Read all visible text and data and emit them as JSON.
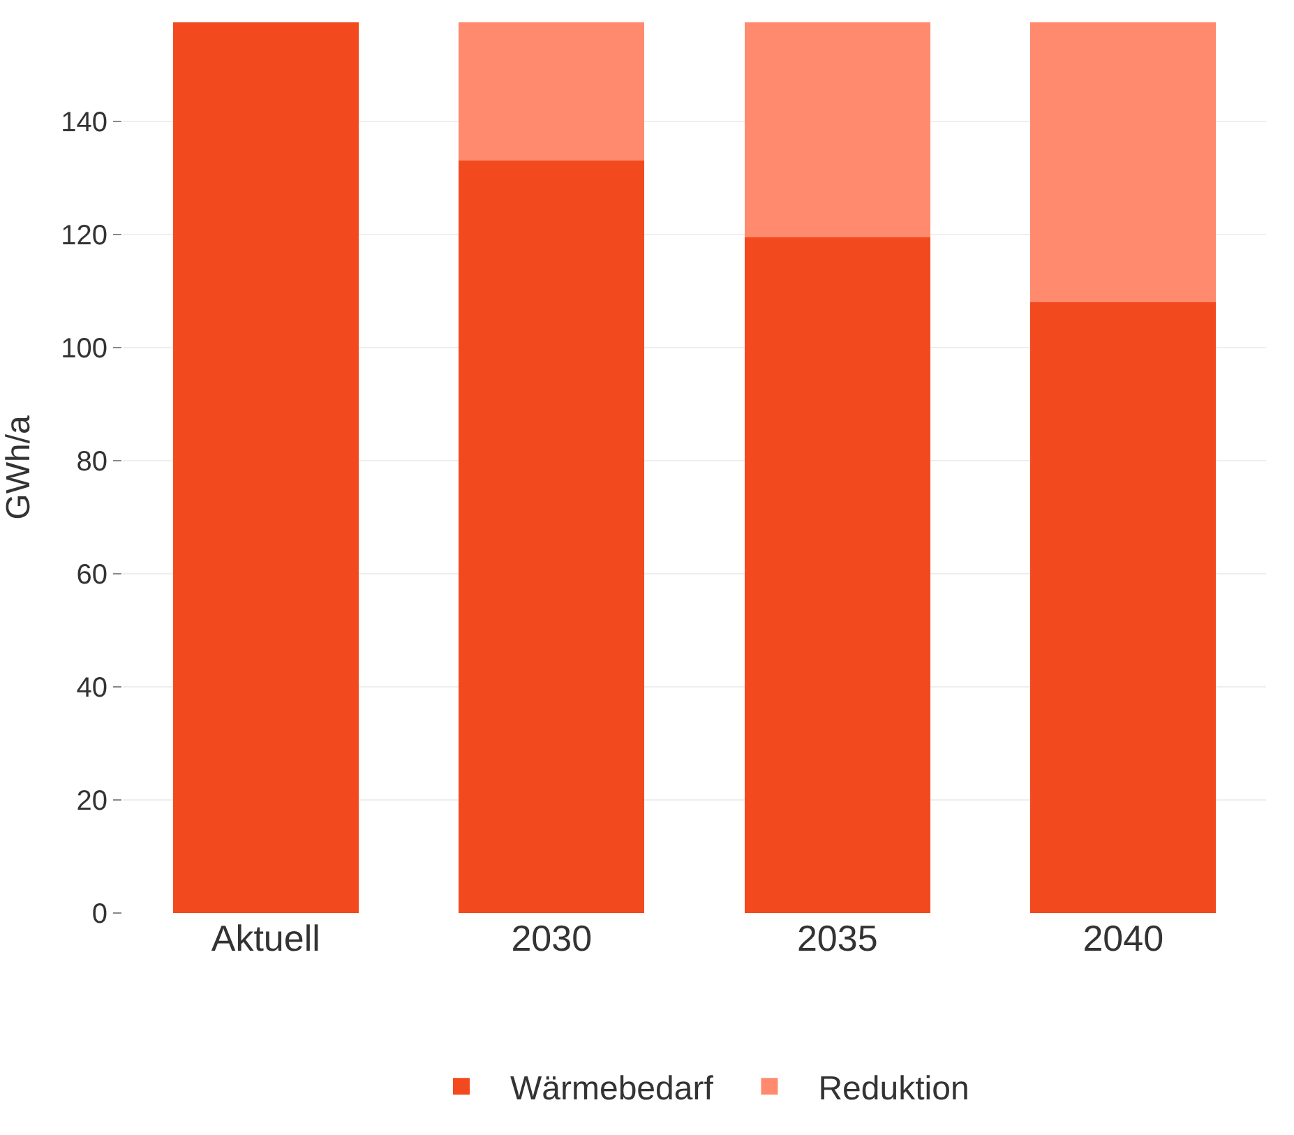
{
  "chart_data": {
    "type": "bar",
    "ylabel": "GWh/a",
    "categories": [
      "Aktuell",
      "2030",
      "2035",
      "2040"
    ],
    "stacked": true,
    "series": [
      {
        "name": "Wärmebedarf",
        "color": "#f24a1e",
        "values": [
          157.5,
          133,
          119.5,
          108
        ]
      },
      {
        "name": "Reduktion",
        "color": "#ff8a6e",
        "values": [
          null,
          24.5,
          38,
          49.5
        ]
      }
    ],
    "ylim": [
      0,
      157.5
    ],
    "yticks": [
      0,
      20,
      40,
      60,
      80,
      100,
      120,
      140
    ],
    "grid": "y",
    "legend": "bottom"
  }
}
